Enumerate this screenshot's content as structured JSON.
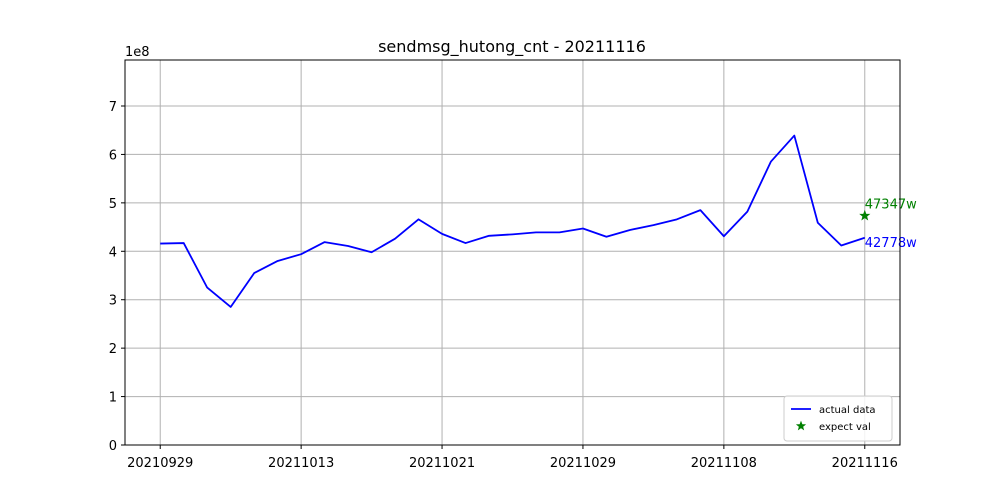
{
  "chart_data": {
    "type": "line",
    "title": "sendmsg_hutong_cnt - 20211116",
    "y_offset_label": "1e8",
    "xlabel": "",
    "ylabel": "",
    "x_tick_labels": [
      "20210929",
      "20211013",
      "20211021",
      "20211029",
      "20211108",
      "20211116"
    ],
    "x_tick_indices": [
      0,
      6,
      12,
      18,
      24,
      30
    ],
    "x_range": [
      -1.5,
      31.5
    ],
    "y_ticks": [
      0,
      1,
      2,
      3,
      4,
      5,
      6,
      7
    ],
    "y_tick_labels": [
      "0",
      "1",
      "2",
      "3",
      "4",
      "5",
      "6",
      "7"
    ],
    "ylim": [
      0,
      7.95
    ],
    "grid": true,
    "legend_position": "lower-right",
    "series": [
      {
        "name": "actual data",
        "color": "#0000ff",
        "marker": "line",
        "values": [
          4.16,
          4.17,
          3.25,
          2.85,
          3.55,
          3.8,
          3.94,
          4.19,
          4.11,
          3.98,
          4.26,
          4.66,
          4.36,
          4.17,
          4.32,
          4.35,
          4.39,
          4.39,
          4.47,
          4.3,
          4.44,
          4.54,
          4.66,
          4.85,
          4.31,
          4.82,
          5.85,
          6.39,
          4.59,
          4.12,
          4.28
        ]
      },
      {
        "name": "expect val",
        "color": "#008000",
        "marker": "star",
        "points": [
          {
            "x": 30,
            "y": 4.7347
          }
        ]
      }
    ],
    "annotations": [
      {
        "text": "47347w",
        "x": 30,
        "y": 4.7347,
        "color": "#008000"
      },
      {
        "text": "42778w",
        "x": 30,
        "y": 4.2778,
        "color": "#0000ff"
      }
    ]
  }
}
